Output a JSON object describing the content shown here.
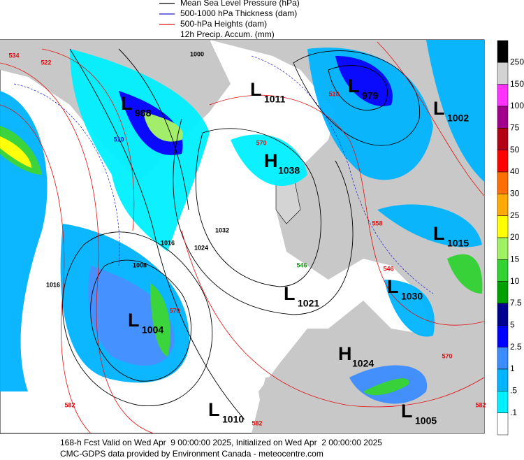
{
  "legend": [
    {
      "label": "Mean Sea Level Pressure (hPa)",
      "color": "#000000"
    },
    {
      "label": "500-1000 hPa Thickness (dam)",
      "color": "#1a1ad0"
    },
    {
      "label": "500-hPa Heights (dam)",
      "color": "#e01010"
    },
    {
      "label": "12h Precip. Accum. (mm)"
    }
  ],
  "colorbar": {
    "labels": [
      "250",
      "150",
      "100",
      "75",
      "50",
      "40",
      "30",
      "25",
      "20",
      "15",
      "10",
      "7.5",
      "5",
      "2.5",
      "1",
      ".5",
      ".1"
    ],
    "colors": [
      "#000000",
      "#d2d2d2",
      "#ff32ff",
      "#a0008c",
      "#b40014",
      "#ff0000",
      "#ff6e00",
      "#ffaa00",
      "#ffff00",
      "#a0f064",
      "#32d232",
      "#00a000",
      "#000090",
      "#0000ff",
      "#3c8cff",
      "#00b4ff",
      "#00f0ff",
      "#ffffff"
    ]
  },
  "centers": [
    {
      "kind": "L",
      "value": "988"
    },
    {
      "kind": "L",
      "value": "1011"
    },
    {
      "kind": "H",
      "value": "1038"
    },
    {
      "kind": "L",
      "value": "979"
    },
    {
      "kind": "L",
      "value": "1002"
    },
    {
      "kind": "L",
      "value": "1015"
    },
    {
      "kind": "L",
      "value": "1030"
    },
    {
      "kind": "L",
      "value": "1021"
    },
    {
      "kind": "L",
      "value": "1004"
    },
    {
      "kind": "H",
      "value": "1024"
    },
    {
      "kind": "L",
      "value": "1010"
    },
    {
      "kind": "L",
      "value": "1005"
    }
  ],
  "contour_labels": [
    {
      "text": "534",
      "color": "#e01010"
    },
    {
      "text": "522",
      "color": "#e01010"
    },
    {
      "text": "510",
      "color": "#1a1ad0"
    },
    {
      "text": "1000",
      "color": "#000000"
    },
    {
      "text": "570",
      "color": "#e01010"
    },
    {
      "text": "1032",
      "color": "#000000"
    },
    {
      "text": "1016",
      "color": "#000000"
    },
    {
      "text": "1024",
      "color": "#000000"
    },
    {
      "text": "1008",
      "color": "#000000"
    },
    {
      "text": "1016",
      "color": "#000000"
    },
    {
      "text": "582",
      "color": "#e01010"
    },
    {
      "text": "570",
      "color": "#e01010"
    },
    {
      "text": "546",
      "color": "#1a9a1a"
    },
    {
      "text": "558",
      "color": "#e01010"
    },
    {
      "text": "582",
      "color": "#e01010"
    },
    {
      "text": "582",
      "color": "#e01010"
    },
    {
      "text": "570",
      "color": "#e01010"
    },
    {
      "text": "546",
      "color": "#e01010"
    },
    {
      "text": "510",
      "color": "#e01010"
    }
  ],
  "footer": [
    "168-h Fcst Valid on Wed Apr  9 00:00:00 2025, Initialized on Wed Apr  2 00:00:00 2025",
    "CMC-GDPS data provided by Environment Canada - meteocentre.com"
  ]
}
